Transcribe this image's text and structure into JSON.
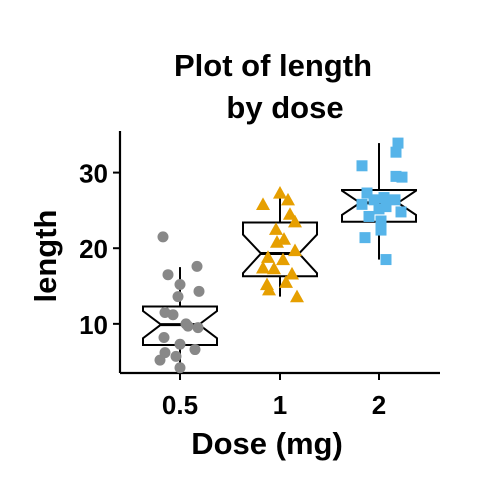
{
  "chart_data": {
    "type": "boxplot",
    "title_line1": "Plot of length",
    "title_line2": "by dose",
    "xlabel": "Dose (mg)",
    "ylabel": "length",
    "categories": [
      "0.5",
      "1",
      "2"
    ],
    "ylim": [
      3.5,
      35.5
    ],
    "yticks": [
      10,
      20,
      30
    ],
    "ytick_labels": [
      "10",
      "20",
      "30"
    ],
    "notched": true,
    "grid": false,
    "groups": [
      {
        "name": "0.5",
        "color": "#888888",
        "marker": "circle",
        "box": {
          "q1": 7.2,
          "median": 9.9,
          "q3": 12.3,
          "whisker_low": 4.2,
          "whisker_high": 17.5,
          "notch_low": 8.1,
          "notch_high": 11.7
        },
        "points": [
          {
            "x": -0.17,
            "y": 21.5
          },
          {
            "x": 0.17,
            "y": 17.6
          },
          {
            "x": -0.12,
            "y": 16.5
          },
          {
            "x": 0.0,
            "y": 15.2
          },
          {
            "x": 0.19,
            "y": 14.3
          },
          {
            "x": -0.02,
            "y": 13.6
          },
          {
            "x": -0.15,
            "y": 11.5
          },
          {
            "x": -0.07,
            "y": 11.2
          },
          {
            "x": 0.06,
            "y": 10.0
          },
          {
            "x": 0.08,
            "y": 9.7
          },
          {
            "x": 0.18,
            "y": 9.5
          },
          {
            "x": -0.16,
            "y": 8.2
          },
          {
            "x": 0.0,
            "y": 7.3
          },
          {
            "x": 0.15,
            "y": 6.6
          },
          {
            "x": -0.15,
            "y": 6.2
          },
          {
            "x": -0.04,
            "y": 5.7
          },
          {
            "x": -0.2,
            "y": 5.2
          },
          {
            "x": 0.0,
            "y": 4.2
          }
        ]
      },
      {
        "name": "1",
        "color": "#E69F00",
        "marker": "triangle",
        "box": {
          "q1": 16.3,
          "median": 19.3,
          "q3": 23.4,
          "whisker_low": 13.6,
          "whisker_high": 27.3,
          "notch_low": 16.7,
          "notch_high": 21.8
        },
        "points": [
          {
            "x": 0.0,
            "y": 27.3
          },
          {
            "x": 0.08,
            "y": 26.4
          },
          {
            "x": -0.17,
            "y": 25.8
          },
          {
            "x": 0.1,
            "y": 24.5
          },
          {
            "x": 0.15,
            "y": 23.5
          },
          {
            "x": -0.04,
            "y": 22.5
          },
          {
            "x": 0.04,
            "y": 21.2
          },
          {
            "x": -0.03,
            "y": 20.8
          },
          {
            "x": 0.15,
            "y": 19.7
          },
          {
            "x": -0.12,
            "y": 18.8
          },
          {
            "x": 0.03,
            "y": 18.5
          },
          {
            "x": -0.17,
            "y": 17.4
          },
          {
            "x": -0.06,
            "y": 17.3
          },
          {
            "x": 0.12,
            "y": 16.6
          },
          {
            "x": -0.13,
            "y": 15.2
          },
          {
            "x": 0.06,
            "y": 15.5
          },
          {
            "x": -0.11,
            "y": 14.5
          },
          {
            "x": 0.17,
            "y": 13.6
          }
        ]
      },
      {
        "name": "2",
        "color": "#56B4E9",
        "marker": "square",
        "box": {
          "q1": 23.5,
          "median": 26.0,
          "q3": 27.7,
          "whisker_low": 18.5,
          "whisker_high": 33.9,
          "notch_low": 24.4,
          "notch_high": 27.6
        },
        "points": [
          {
            "x": 0.19,
            "y": 33.9
          },
          {
            "x": 0.17,
            "y": 32.7
          },
          {
            "x": -0.17,
            "y": 30.9
          },
          {
            "x": 0.17,
            "y": 29.5
          },
          {
            "x": 0.23,
            "y": 29.4
          },
          {
            "x": -0.12,
            "y": 27.3
          },
          {
            "x": 0.05,
            "y": 26.7
          },
          {
            "x": -0.05,
            "y": 26.4
          },
          {
            "x": 0.16,
            "y": 26.4
          },
          {
            "x": -0.17,
            "y": 25.8
          },
          {
            "x": 0.07,
            "y": 25.5
          },
          {
            "x": 0.0,
            "y": 25.2
          },
          {
            "x": 0.22,
            "y": 24.8
          },
          {
            "x": -0.1,
            "y": 24.2
          },
          {
            "x": 0.02,
            "y": 23.6
          },
          {
            "x": 0.02,
            "y": 22.4
          },
          {
            "x": -0.14,
            "y": 21.4
          },
          {
            "x": 0.07,
            "y": 18.5
          }
        ]
      }
    ]
  }
}
